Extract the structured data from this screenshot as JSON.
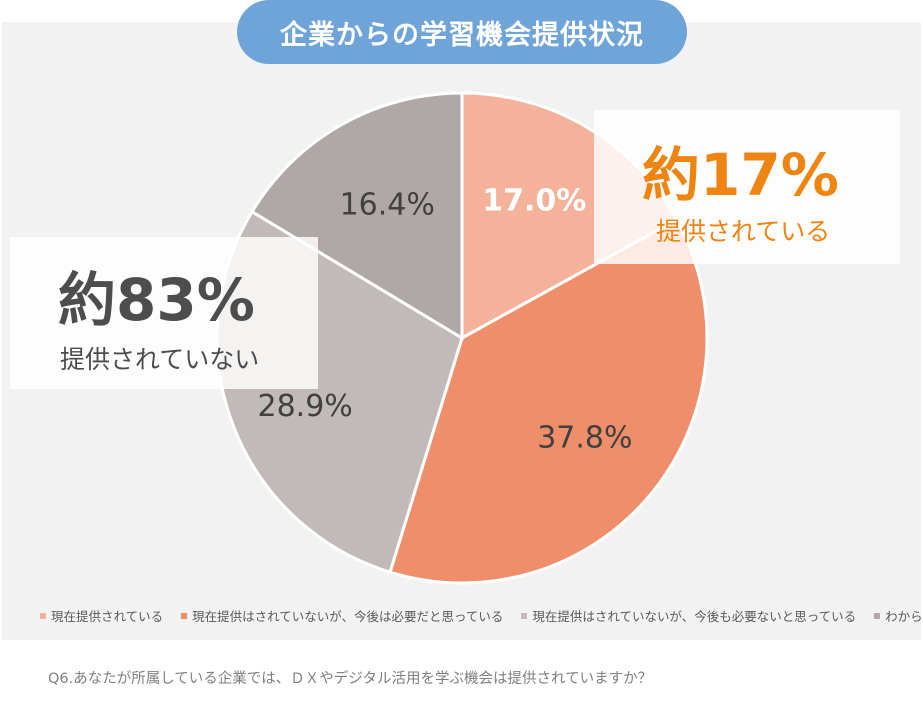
{
  "chart_data": {
    "type": "pie",
    "title": "企業からの学習機会提供状況",
    "categories": [
      "現在提供されている",
      "現在提供はされていないが、今後は必要だと思っている",
      "現在提供はされていないが、今後も必要ないと思っている",
      "わからない"
    ],
    "values": [
      17.0,
      37.8,
      28.9,
      16.4
    ],
    "labels": [
      "17.0%",
      "37.8%",
      "28.9%",
      "16.4%"
    ],
    "colors": [
      "#f4b29b",
      "#ef8e6b",
      "#c1bab9",
      "#b0a8a6"
    ],
    "label_colors": [
      "#ffffff",
      "#404040",
      "#404040",
      "#404040"
    ],
    "legend_position": "bottom",
    "annotations": [
      {
        "big": "約17%",
        "sub": "提供されている"
      },
      {
        "big": "約83%",
        "sub": "提供されていない"
      }
    ],
    "question": "Q6.あなたが所属している企業では、ＤＸやデジタル活用を学ぶ機会は提供されていますか？"
  }
}
